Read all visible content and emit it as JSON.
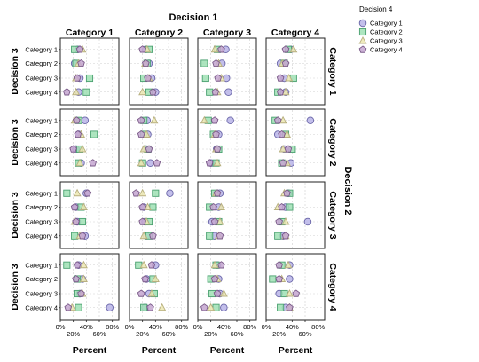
{
  "chart_data": {
    "type": "scatter",
    "title": "",
    "col_header": "Decision 1",
    "row_header": "Decision 2",
    "ylabel": "Decision 3",
    "xlabel": "Percent",
    "columns": [
      "Category 1",
      "Category 2",
      "Category 3",
      "Category 4"
    ],
    "rows": [
      "Category 1",
      "Category 2",
      "Category 3",
      "Category 4"
    ],
    "y_categories": [
      "Category 1",
      "Category 2",
      "Category 3",
      "Category 4"
    ],
    "x_ticks_upper": [
      "0%",
      "40%",
      "80%"
    ],
    "x_ticks_lower": [
      "20%",
      "60%"
    ],
    "xlim": [
      0,
      90
    ],
    "legend": {
      "title": "Decision 4",
      "position": "top-right",
      "entries": [
        {
          "name": "Category 1",
          "shape": "circle",
          "color": "#b8b4e8",
          "stroke": "#6a66a8"
        },
        {
          "name": "Category 2",
          "shape": "square",
          "color": "#9fe0b4",
          "stroke": "#4aa070"
        },
        {
          "name": "Category 3",
          "shape": "triangle",
          "color": "#ece8b2",
          "stroke": "#b8b080"
        },
        {
          "name": "Category 4",
          "shape": "pentagon",
          "color": "#c4a6d0",
          "stroke": "#7a5a88"
        }
      ]
    },
    "panels": [
      {
        "row": 0,
        "col": 0,
        "points": [
          [
            27,
            22,
            34,
            30
          ],
          [
            22,
            24,
            28,
            32
          ],
          [
            30,
            45,
            24,
            26
          ],
          [
            28,
            40,
            24,
            10
          ]
        ]
      },
      {
        "row": 0,
        "col": 1,
        "points": [
          [
            25,
            30,
            27,
            20
          ],
          [
            30,
            27,
            24,
            25
          ],
          [
            34,
            22,
            30,
            28
          ],
          [
            40,
            30,
            20,
            36
          ]
        ]
      },
      {
        "row": 0,
        "col": 2,
        "points": [
          [
            43,
            30,
            26,
            36
          ],
          [
            37,
            10,
            32,
            28
          ],
          [
            44,
            12,
            36,
            31
          ],
          [
            47,
            18,
            30,
            27
          ]
        ]
      },
      {
        "row": 0,
        "col": 3,
        "points": [
          [
            38,
            34,
            42,
            30
          ],
          [
            22,
            28,
            25,
            30
          ],
          [
            28,
            42,
            35,
            22
          ],
          [
            30,
            18,
            30,
            22
          ]
        ]
      },
      {
        "row": 1,
        "col": 0,
        "points": [
          [
            38,
            28,
            22,
            25
          ],
          [
            28,
            52,
            32,
            27
          ],
          [
            24,
            30,
            34,
            20
          ],
          [
            32,
            28,
            30,
            50
          ]
        ]
      },
      {
        "row": 1,
        "col": 1,
        "points": [
          [
            27,
            22,
            38,
            18
          ],
          [
            28,
            22,
            26,
            18
          ],
          [
            25,
            28,
            22,
            30
          ],
          [
            32,
            20,
            18,
            42
          ]
        ]
      },
      {
        "row": 1,
        "col": 2,
        "points": [
          [
            50,
            16,
            10,
            26
          ],
          [
            32,
            24,
            26,
            28
          ],
          [
            29,
            32,
            28,
            30
          ],
          [
            20,
            28,
            30,
            18
          ]
        ]
      },
      {
        "row": 1,
        "col": 3,
        "points": [
          [
            68,
            14,
            26,
            18
          ],
          [
            18,
            30,
            32,
            24
          ],
          [
            28,
            40,
            26,
            34
          ],
          [
            38,
            24,
            32,
            26
          ]
        ]
      },
      {
        "row": 2,
        "col": 0,
        "points": [
          [
            40,
            10,
            26,
            42
          ],
          [
            24,
            32,
            36,
            22
          ],
          [
            26,
            34,
            22,
            24
          ],
          [
            38,
            22,
            30,
            34
          ]
        ]
      },
      {
        "row": 2,
        "col": 1,
        "points": [
          [
            62,
            40,
            20,
            10
          ],
          [
            22,
            36,
            28,
            20
          ],
          [
            24,
            30,
            26,
            20
          ],
          [
            26,
            30,
            22,
            36
          ]
        ]
      },
      {
        "row": 2,
        "col": 2,
        "points": [
          [
            34,
            26,
            28,
            30
          ],
          [
            32,
            18,
            36,
            24
          ],
          [
            22,
            32,
            34,
            26
          ],
          [
            26,
            18,
            32,
            34
          ]
        ]
      },
      {
        "row": 2,
        "col": 3,
        "points": [
          [
            34,
            36,
            28,
            32
          ],
          [
            30,
            36,
            18,
            24
          ],
          [
            64,
            24,
            30,
            20
          ],
          [
            26,
            18,
            30,
            30
          ]
        ]
      },
      {
        "row": 3,
        "col": 0,
        "points": [
          [
            28,
            10,
            36,
            26
          ],
          [
            34,
            26,
            36,
            24
          ],
          [
            30,
            26,
            34,
            32
          ],
          [
            76,
            28,
            18,
            12
          ]
        ]
      },
      {
        "row": 3,
        "col": 1,
        "points": [
          [
            40,
            14,
            22,
            34
          ],
          [
            26,
            36,
            40,
            24
          ],
          [
            30,
            38,
            34,
            18
          ],
          [
            24,
            22,
            50,
            32
          ]
        ]
      },
      {
        "row": 3,
        "col": 2,
        "points": [
          [
            30,
            28,
            26,
            36
          ],
          [
            32,
            20,
            30,
            26
          ],
          [
            34,
            22,
            40,
            30
          ],
          [
            40,
            28,
            20,
            10
          ]
        ]
      },
      {
        "row": 3,
        "col": 3,
        "points": [
          [
            36,
            24,
            34,
            20
          ],
          [
            36,
            10,
            24,
            20
          ],
          [
            20,
            28,
            36,
            46
          ],
          [
            30,
            22,
            36,
            36
          ]
        ]
      }
    ]
  }
}
